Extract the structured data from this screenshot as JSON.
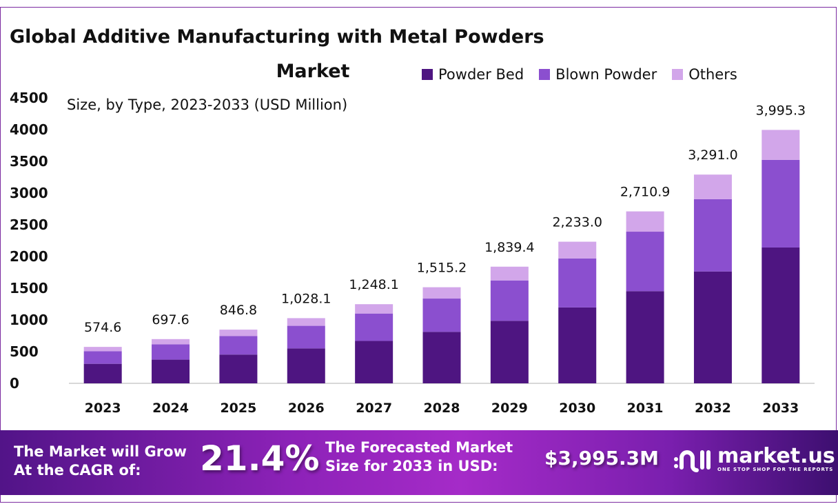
{
  "title_line1": "Global Additive Manufacturing with Metal Powders",
  "title_line2": "Market",
  "subtitle": "Size, by Type, 2023-2033 (USD Million)",
  "chart_data": {
    "type": "bar",
    "stacked": true,
    "title": "Global Additive Manufacturing with Metal Powders Market",
    "subtitle": "Size, by Type, 2023-2033 (USD Million)",
    "categories": [
      "2023",
      "2024",
      "2025",
      "2026",
      "2027",
      "2028",
      "2029",
      "2030",
      "2031",
      "2032",
      "2033"
    ],
    "series": [
      {
        "name": "Powder Bed",
        "color": "#4e1581",
        "values": [
          308.0,
          373.9,
          453.9,
          551.1,
          669.0,
          812.2,
          985.9,
          1196.9,
          1453.0,
          1764.0,
          2141.5
        ]
      },
      {
        "name": "Blown Powder",
        "color": "#8b4fcf",
        "values": [
          198.8,
          241.4,
          293.0,
          355.7,
          431.8,
          524.3,
          636.4,
          772.6,
          938.0,
          1138.7,
          1382.4
        ]
      },
      {
        "name": "Others",
        "color": "#d2a6ea",
        "values": [
          67.8,
          82.3,
          99.9,
          121.3,
          147.3,
          178.7,
          217.1,
          263.5,
          319.9,
          388.3,
          471.4
        ]
      }
    ],
    "totals": [
      574.6,
      697.6,
      846.8,
      1028.1,
      1248.1,
      1515.2,
      1839.4,
      2233.0,
      2710.9,
      3291.0,
      3995.3
    ],
    "total_labels": [
      "574.6",
      "697.6",
      "846.8",
      "1,028.1",
      "1,248.1",
      "1,515.2",
      "1,839.4",
      "2,233.0",
      "2,710.9",
      "3,291.0",
      "3,995.3"
    ],
    "yticks": [
      "0",
      "500",
      "1000",
      "1500",
      "2000",
      "2500",
      "3000",
      "3500",
      "4000",
      "4500"
    ],
    "ylim": [
      0,
      4500
    ],
    "legend": "top-right",
    "grid": false
  },
  "banner": {
    "cagr_text_1": "The Market will Grow",
    "cagr_text_2": "At the CAGR of:",
    "cagr_value": "21.4%",
    "forecast_text_1": "The Forecasted Market",
    "forecast_text_2": "Size for 2033 in USD:",
    "forecast_value": "$3,995.3M",
    "logo_name": "market.us",
    "logo_tagline": "ONE STOP SHOP FOR THE REPORTS"
  }
}
